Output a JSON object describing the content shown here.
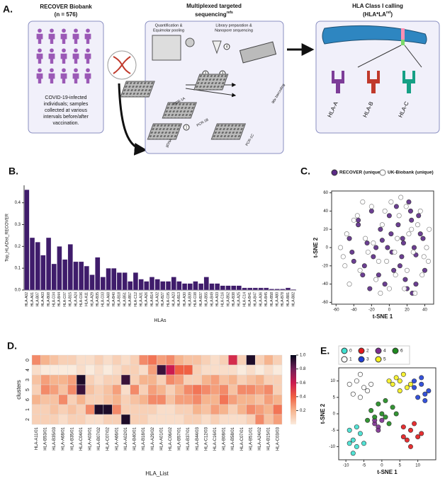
{
  "diagram": {
    "panel_label": "A.",
    "cohort": {
      "title": "RECOVER   Biobank",
      "count": "(n = 576)",
      "description": [
        "COVID-19-infected",
        "individuals; samples",
        "collected at various",
        "intervals before/after",
        "vaccination."
      ]
    },
    "sequencing": {
      "title": "Multiplexed targeted",
      "title2": "sequencing",
      "superscript": "refs",
      "step_a": [
        "Quantification &",
        "Equimolar pooling"
      ],
      "step_b": [
        "Library preparation &",
        "Nanopore sequencing"
      ],
      "plates": [
        "PCR-1A",
        "PCR-1B",
        "PCR-1C",
        "gDNA",
        "96x barcoding"
      ],
      "steps": [
        "1",
        "2",
        "3",
        "4"
      ]
    },
    "calling": {
      "title": "HLA Class I calling",
      "title2": "(HLA*LA",
      "superscript": "ref",
      "title2_end": ")",
      "genes": [
        "HLA-A",
        "HLA-B",
        "HLA-C"
      ]
    }
  },
  "chart_data": [
    {
      "type": "bar",
      "panel_label": "B.",
      "xlabel": "HLAs",
      "ylabel": "Top_HLADist_RECOVER",
      "color": "#3f1c6b",
      "categories": [
        "HLA-A02",
        "HLA-A01",
        "HLA-B07",
        "HLA-A03",
        "HLA-B08",
        "HLA-C04",
        "HLA-B44",
        "HLA-C07",
        "HLA-B15",
        "HLA-A24",
        "HLA-C06",
        "HLA-A11",
        "HLA-A29",
        "HLA-B35",
        "HLA-C03",
        "HLA-A68",
        "HLA-B40",
        "HLA-B18",
        "HLA-B51",
        "HLA-B57",
        "HLA-C12",
        "HLA-A31",
        "HLA-A26",
        "HLA-B14",
        "HLA-A32",
        "HLA-B27",
        "HLA-C05",
        "HLA-A23",
        "HLA-B13",
        "HLA-A30",
        "HLA-B39",
        "HLA-C08",
        "HLA-B37",
        "HLA-B55",
        "HLA-B49",
        "HLA-A33",
        "HLA-C16",
        "HLA-B52",
        "HLA-B38",
        "HLA-A25",
        "HLA-C14",
        "HLA-B41",
        "HLA-B47",
        "HLA-A36",
        "HLA-B45",
        "HLA-B58",
        "HLA-A80",
        "HLA-B78",
        "HLA-B81",
        "HLA-B82"
      ],
      "values": [
        0.46,
        0.24,
        0.22,
        0.16,
        0.24,
        0.12,
        0.2,
        0.14,
        0.21,
        0.13,
        0.13,
        0.11,
        0.07,
        0.15,
        0.06,
        0.1,
        0.1,
        0.08,
        0.08,
        0.04,
        0.08,
        0.05,
        0.04,
        0.06,
        0.05,
        0.04,
        0.04,
        0.06,
        0.04,
        0.03,
        0.03,
        0.04,
        0.03,
        0.06,
        0.03,
        0.03,
        0.02,
        0.02,
        0.02,
        0.02,
        0.01,
        0.01,
        0.01,
        0.01,
        0.01,
        0.005,
        0.005,
        0.005,
        0.01,
        0.003
      ],
      "ylim": [
        0,
        0.48
      ],
      "yticks": [
        {
          "value": 0,
          "label": "0.0"
        },
        0.1,
        0.2,
        0.3,
        0.4
      ]
    },
    {
      "type": "scatter",
      "panel_label": "C.",
      "xlabel": "t-SNE 1",
      "ylabel": "t-SNE 2",
      "legend_columns": 2,
      "xlim": [
        -65,
        50
      ],
      "ylim": [
        -62,
        62
      ],
      "xticks": [
        -60,
        -40,
        -20,
        0,
        20,
        40
      ],
      "yticks": [
        -60,
        -40,
        -20,
        0,
        20,
        40,
        60
      ],
      "series": [
        {
          "name": "RECOVER (unique)",
          "color": "#5b2a86",
          "edgecolor": "#333333",
          "x": [
            -45,
            -40,
            -35,
            -30,
            -25,
            -20,
            -18,
            -10,
            -5,
            0,
            3,
            8,
            12,
            15,
            20,
            25,
            30,
            35,
            40,
            -42,
            -28,
            -15,
            -8,
            5,
            10,
            18,
            22,
            28,
            33,
            -22,
            -12,
            2,
            14,
            26,
            -35,
            -2,
            16,
            24,
            30,
            38
          ],
          "values": [
            10,
            -15,
            25,
            -30,
            5,
            40,
            -10,
            20,
            -40,
            35,
            -5,
            45,
            -20,
            10,
            -45,
            30,
            -8,
            15,
            -25,
            -5,
            -20,
            0,
            8,
            -25,
            25,
            -35,
            50,
            0,
            35,
            -45,
            -30,
            15,
            -10,
            -50,
            30,
            0,
            5,
            40,
            -40,
            10
          ]
        },
        {
          "name": "UK-Biobank (unique)",
          "color": "#ffffff",
          "edgecolor": "#777777",
          "x": [
            -55,
            -50,
            -48,
            -40,
            -33,
            -27,
            -20,
            -15,
            -8,
            -3,
            2,
            7,
            11,
            17,
            22,
            27,
            32,
            37,
            42,
            45,
            -45,
            -36,
            -24,
            -12,
            0,
            9,
            19,
            29,
            39,
            -30,
            -18,
            -5,
            6,
            20,
            35,
            -52,
            -10,
            13,
            25,
            44
          ],
          "values": [
            0,
            -20,
            15,
            30,
            -25,
            10,
            45,
            -35,
            25,
            -15,
            50,
            -30,
            35,
            -45,
            15,
            -5,
            25,
            -30,
            0,
            20,
            -40,
            35,
            -5,
            -15,
            -45,
            10,
            45,
            -50,
            -10,
            50,
            5,
            40,
            -5,
            -25,
            40,
            -10,
            -50,
            55,
            20,
            -15
          ]
        }
      ]
    },
    {
      "type": "heatmap",
      "panel_label": "D.",
      "xlabel": "HLA_List",
      "ylabel": "clusters",
      "x_categories": [
        "HLA-A11/01",
        "HLA-B53/01",
        "HLA-B35/03",
        "HLA-A68/01",
        "HLA-B35/01",
        "HLA-C04/01",
        "HLA-A03/01",
        "HLA-B07/02",
        "HLA-C07/02",
        "HLA-A66/01",
        "HLA-A02/01",
        "HLA-B40/01",
        "HLA-B18/01",
        "HLA-A29/02",
        "HLA-A01/01",
        "HLA-C06/02",
        "HLA-B57/01",
        "HLA-B37/01",
        "HLA-B44/03",
        "HLA-C12/03",
        "HLA-C16/01",
        "HLA-B08/01",
        "HLA-B58/01",
        "HLA-C07/01",
        "HLA-B51/01",
        "HLA-A24/02",
        "HLA-B15/01",
        "HLA-C03/03"
      ],
      "y_categories": [
        "0",
        "4",
        "3",
        "5",
        "6",
        "1",
        "2"
      ],
      "values": [
        [
          0.3,
          0.2,
          0.15,
          0.1,
          0.1,
          0.05,
          0.05,
          0.1,
          0.05,
          0.1,
          0.05,
          0.1,
          0.3,
          0.35,
          0.25,
          0.3,
          0.2,
          0.15,
          0.15,
          0.1,
          0.05,
          0.1,
          0.55,
          0.1,
          0.95,
          0.1,
          0.2,
          0.1
        ],
        [
          0.05,
          0,
          0,
          0,
          0,
          0.05,
          0,
          0.05,
          0,
          0.05,
          0.1,
          0.1,
          0.05,
          0.25,
          0.9,
          0.6,
          0.4,
          0.4,
          0.1,
          0.05,
          0.05,
          0.05,
          0.05,
          0,
          0.05,
          0,
          0.05,
          0
        ],
        [
          0.15,
          0.25,
          0.2,
          0.2,
          0.25,
          0.95,
          0.1,
          0.05,
          0.1,
          0.1,
          0.9,
          0.1,
          0.2,
          0.2,
          0.1,
          0.3,
          0.25,
          0.1,
          0.1,
          0.2,
          0.25,
          0.15,
          0.2,
          0.1,
          0.15,
          0.2,
          0.1,
          0.1
        ],
        [
          0.1,
          0.3,
          0.25,
          0.15,
          0.3,
          0.9,
          0.15,
          0.1,
          0.15,
          0.25,
          0.05,
          0.3,
          0.1,
          0.25,
          0.2,
          0.1,
          0.2,
          0.3,
          0.35,
          0.3,
          0.25,
          0.3,
          0.15,
          0.3,
          0.3,
          0.25,
          0.3,
          0.1
        ],
        [
          0.2,
          0.15,
          0.15,
          0.3,
          0.1,
          0.2,
          0.1,
          0.1,
          0.15,
          0.2,
          0.1,
          0.15,
          0.2,
          0.3,
          0.3,
          0.15,
          0.25,
          0.25,
          0.3,
          0.2,
          0.2,
          0.35,
          0.25,
          0.2,
          0.2,
          0.15,
          0.25,
          0.2
        ],
        [
          0.1,
          0.1,
          0.15,
          0.1,
          0.15,
          0.1,
          0.3,
          0.95,
          0.95,
          0.3,
          0.1,
          0.1,
          0.1,
          0.1,
          0.05,
          0.05,
          0.1,
          0.1,
          0.2,
          0.15,
          0.25,
          0.2,
          0.1,
          0.2,
          0.3,
          0.25,
          0.2,
          0.35
        ],
        [
          0.1,
          0.1,
          0.1,
          0.05,
          0.1,
          0.1,
          0.05,
          0.05,
          0.1,
          0.1,
          0.95,
          0.1,
          0.1,
          0.05,
          0.05,
          0.05,
          0.05,
          0.1,
          0.1,
          0.05,
          0.1,
          0.05,
          0.05,
          0.05,
          0.1,
          0.3,
          0.15,
          0.25
        ]
      ],
      "clim": [
        0,
        1
      ],
      "cbar_ticks": [
        0.2,
        0.4,
        0.6,
        0.8,
        {
          "value": 1,
          "label": "1.0"
        }
      ]
    },
    {
      "type": "scatter",
      "panel_label": "E.",
      "xlabel": "t-SNE 1",
      "ylabel": "t-SNE 2",
      "legend_columns": 4,
      "xlim": [
        -12,
        15
      ],
      "ylim": [
        -14,
        14
      ],
      "xticks": [
        -10,
        -5,
        0,
        5,
        10
      ],
      "yticks": [
        -10,
        -5,
        0,
        5,
        10
      ],
      "series": [
        {
          "name": "0",
          "color": "#40e0d0",
          "edgecolor": "#333333",
          "x": [
            -9,
            -8,
            -7,
            -6,
            -8,
            -5,
            -7,
            -9
          ],
          "values": [
            -5,
            -8,
            -10,
            -6,
            -12,
            -9,
            -4,
            -9
          ]
        },
        {
          "name": "1",
          "color": "#ffffff",
          "edgecolor": "#333333",
          "x": [
            -9,
            -7,
            -5,
            -6,
            -4,
            -8,
            -3,
            -6
          ],
          "values": [
            9,
            10,
            8,
            12,
            7,
            6,
            9,
            5
          ]
        },
        {
          "name": "2",
          "color": "#e3191c",
          "edgecolor": "#333333",
          "x": [
            6,
            8,
            10,
            7,
            9,
            11,
            8,
            6
          ],
          "values": [
            -4,
            -5,
            -7,
            -8,
            -3,
            -6,
            -10,
            -7
          ]
        },
        {
          "name": "3",
          "color": "#1f3fd6",
          "edgecolor": "#333333",
          "x": [
            9,
            11,
            12,
            10,
            13,
            11,
            9,
            12
          ],
          "values": [
            8,
            9,
            6,
            5,
            7,
            11,
            10,
            4
          ]
        },
        {
          "name": "4",
          "color": "#7b2d8e",
          "edgecolor": "#333333",
          "x": [
            -2,
            -1,
            0,
            -2,
            -1
          ],
          "values": [
            -3,
            -4,
            -2,
            -2,
            -5
          ]
        },
        {
          "name": "5",
          "color": "#f5f01e",
          "edgecolor": "#333333",
          "x": [
            3,
            5,
            7,
            4,
            6,
            8,
            5,
            2
          ],
          "values": [
            9,
            10,
            8,
            11,
            12,
            9,
            7,
            10
          ]
        },
        {
          "name": "6",
          "color": "#1e8a1e",
          "edgecolor": "#333333",
          "x": [
            -3,
            -1,
            1,
            3,
            0,
            2,
            -2,
            4,
            1,
            -4
          ],
          "values": [
            1,
            3,
            -1,
            2,
            0,
            -3,
            -1,
            0,
            4,
            -2
          ]
        }
      ]
    }
  ]
}
